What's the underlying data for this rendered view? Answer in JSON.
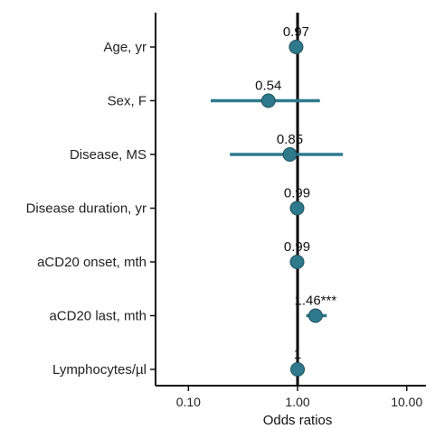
{
  "chart_data": {
    "type": "scatter",
    "subtype": "forest-plot",
    "xlabel": "Odds ratios",
    "xscale": "log10",
    "xlim": [
      0.05,
      15
    ],
    "xticks": [
      0.1,
      1,
      10
    ],
    "xtick_labels": [
      "0.10",
      "1.00",
      "10.00"
    ],
    "reference_line": 1,
    "point_color": "#2E7A8C",
    "rows": [
      {
        "label": "Age, yr",
        "or": 0.97,
        "lo": 0.96,
        "hi": 0.99,
        "annotation": "0.97"
      },
      {
        "label": "Sex, F",
        "or": 0.54,
        "lo": 0.16,
        "hi": 1.6,
        "annotation": "0.54"
      },
      {
        "label": "Disease, MS",
        "or": 0.85,
        "lo": 0.24,
        "hi": 2.6,
        "annotation": "0.85"
      },
      {
        "label": "Disease duration, yr",
        "or": 0.99,
        "lo": 0.98,
        "hi": 1.0,
        "annotation": "0.99"
      },
      {
        "label": "aCD20 onset, mth",
        "or": 0.99,
        "lo": 0.98,
        "hi": 1.0,
        "annotation": "0.99"
      },
      {
        "label": "aCD20 last, mth",
        "or": 1.46,
        "lo": 1.2,
        "hi": 1.85,
        "annotation": "1.46***"
      },
      {
        "label": "Lymphocytes/µl",
        "or": 1.0,
        "lo": 1.0,
        "hi": 1.0,
        "annotation": "1"
      }
    ]
  }
}
